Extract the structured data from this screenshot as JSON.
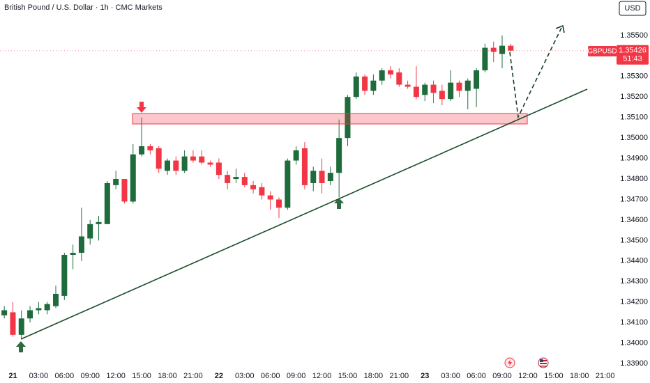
{
  "chart_data": {
    "type": "candlestick",
    "title": "British Pound / U.S. Dollar · 1h · CMC Markets",
    "currency": "USD",
    "symbol": "GBPUSD",
    "last_price": 1.35426,
    "countdown": "51:43",
    "up_color": "#1e6b3c",
    "down_color": "#f23645",
    "xlim": [
      -1.5,
      70
    ],
    "ylim": [
      1.33873,
      1.35673
    ],
    "xticks": [
      {
        "value": 0,
        "label": "21"
      },
      {
        "value": 3,
        "label": "03:00"
      },
      {
        "value": 6,
        "label": "06:00"
      },
      {
        "value": 9,
        "label": "09:00"
      },
      {
        "value": 12,
        "label": "12:00"
      },
      {
        "value": 15,
        "label": "15:00"
      },
      {
        "value": 18,
        "label": "18:00"
      },
      {
        "value": 21,
        "label": "21:00"
      },
      {
        "value": 24,
        "label": "22"
      },
      {
        "value": 27,
        "label": "03:00"
      },
      {
        "value": 30,
        "label": "06:00"
      },
      {
        "value": 33,
        "label": "09:00"
      },
      {
        "value": 36,
        "label": "12:00"
      },
      {
        "value": 39,
        "label": "15:00"
      },
      {
        "value": 42,
        "label": "18:00"
      },
      {
        "value": 45,
        "label": "21:00"
      },
      {
        "value": 48,
        "label": "23"
      },
      {
        "value": 51,
        "label": "03:00"
      },
      {
        "value": 54,
        "label": "06:00"
      },
      {
        "value": 57,
        "label": "09:00"
      },
      {
        "value": 60,
        "label": "12:00"
      },
      {
        "value": 63,
        "label": "15:00"
      },
      {
        "value": 66,
        "label": "18:00"
      },
      {
        "value": 69,
        "label": "21:00"
      }
    ],
    "yticks": [
      {
        "value": 1.339,
        "label": "1.33900"
      },
      {
        "value": 1.34,
        "label": "1.34000"
      },
      {
        "value": 1.341,
        "label": "1.34100"
      },
      {
        "value": 1.342,
        "label": "1.34200"
      },
      {
        "value": 1.343,
        "label": "1.34300"
      },
      {
        "value": 1.344,
        "label": "1.34400"
      },
      {
        "value": 1.345,
        "label": "1.34500"
      },
      {
        "value": 1.346,
        "label": "1.34600"
      },
      {
        "value": 1.347,
        "label": "1.34700"
      },
      {
        "value": 1.348,
        "label": "1.34800"
      },
      {
        "value": 1.349,
        "label": "1.34900"
      },
      {
        "value": 1.35,
        "label": "1.35000"
      },
      {
        "value": 1.351,
        "label": "1.35100"
      },
      {
        "value": 1.352,
        "label": "1.35200"
      },
      {
        "value": 1.353,
        "label": "1.35300"
      },
      {
        "value": 1.355,
        "label": "1.35500"
      }
    ],
    "x": [
      -1,
      0,
      1,
      2,
      3,
      4,
      5,
      6,
      7,
      8,
      9,
      10,
      11,
      12,
      13,
      14,
      15,
      16,
      17,
      18,
      19,
      20,
      21,
      22,
      23,
      24,
      25,
      26,
      27,
      28,
      29,
      30,
      31,
      32,
      33,
      34,
      35,
      36,
      37,
      38,
      39,
      40,
      41,
      42,
      43,
      44,
      45,
      46,
      47,
      48,
      49,
      50,
      51,
      52,
      53,
      54,
      55,
      56,
      57,
      58
    ],
    "open": [
      1.34135,
      1.3415,
      1.3404,
      1.3412,
      1.3416,
      1.3416,
      1.3418,
      1.3423,
      1.3443,
      1.3444,
      1.3451,
      1.3458,
      1.3458,
      1.3477,
      1.348,
      1.3469,
      1.3492,
      1.3496,
      1.3495,
      1.3484,
      1.3489,
      1.3484,
      1.3491,
      1.3491,
      1.3488,
      1.3488,
      1.3482,
      1.348,
      1.3481,
      1.3477,
      1.3476,
      1.3472,
      1.347,
      1.3466,
      1.3489,
      1.3495,
      1.3478,
      1.3484,
      1.3479,
      1.3483,
      1.35,
      1.352,
      1.353,
      1.3523,
      1.3528,
      1.3533,
      1.3532,
      1.3526,
      1.3525,
      1.3521,
      1.3526,
      1.3523,
      1.3519,
      1.3527,
      1.3523,
      1.3524,
      1.3533,
      1.3544,
      1.3541,
      1.3545
    ],
    "high": [
      1.3418,
      1.342,
      1.3416,
      1.3418,
      1.342,
      1.342,
      1.3428,
      1.3444,
      1.3448,
      1.3466,
      1.346,
      1.3462,
      1.3479,
      1.3484,
      1.348,
      1.3497,
      1.351,
      1.3497,
      1.3496,
      1.349,
      1.3491,
      1.3494,
      1.3494,
      1.3494,
      1.3489,
      1.349,
      1.3484,
      1.3485,
      1.3483,
      1.3479,
      1.3478,
      1.3474,
      1.3471,
      1.349,
      1.3496,
      1.3498,
      1.3486,
      1.349,
      1.3486,
      1.3509,
      1.3521,
      1.3532,
      1.3531,
      1.3531,
      1.3534,
      1.3535,
      1.3534,
      1.3528,
      1.3535,
      1.3527,
      1.3528,
      1.3526,
      1.3533,
      1.3528,
      1.3529,
      1.3534,
      1.3546,
      1.3547,
      1.355,
      1.3546
    ],
    "low": [
      1.3412,
      1.3403,
      1.3402,
      1.341,
      1.3414,
      1.3414,
      1.3417,
      1.3421,
      1.3436,
      1.344,
      1.3448,
      1.345,
      1.3458,
      1.3475,
      1.3468,
      1.3468,
      1.3491,
      1.3492,
      1.3483,
      1.3482,
      1.3482,
      1.3483,
      1.3488,
      1.3487,
      1.3486,
      1.348,
      1.3475,
      1.3478,
      1.3476,
      1.3473,
      1.347,
      1.3465,
      1.3461,
      1.3465,
      1.3487,
      1.3475,
      1.3474,
      1.3473,
      1.3477,
      1.3471,
      1.3496,
      1.3519,
      1.3521,
      1.3521,
      1.3526,
      1.3529,
      1.3525,
      1.3524,
      1.3519,
      1.3518,
      1.3517,
      1.3516,
      1.3518,
      1.352,
      1.3514,
      1.3515,
      1.3532,
      1.3537,
      1.3534,
      1.3542
    ],
    "close": [
      1.3416,
      1.3404,
      1.3412,
      1.3416,
      1.3417,
      1.3419,
      1.3424,
      1.3443,
      1.3444,
      1.3452,
      1.3458,
      1.3459,
      1.3478,
      1.348,
      1.3469,
      1.3492,
      1.3496,
      1.3494,
      1.3485,
      1.3489,
      1.3484,
      1.3491,
      1.3489,
      1.3488,
      1.3487,
      1.3482,
      1.3478,
      1.3481,
      1.3477,
      1.3475,
      1.3472,
      1.347,
      1.3466,
      1.3489,
      1.3494,
      1.3477,
      1.3484,
      1.3478,
      1.3483,
      1.35,
      1.352,
      1.353,
      1.3523,
      1.3528,
      1.3533,
      1.3531,
      1.3526,
      1.3525,
      1.352,
      1.3526,
      1.3522,
      1.3519,
      1.3527,
      1.3523,
      1.3528,
      1.3533,
      1.3544,
      1.3542,
      1.3545,
      1.35426
    ]
  }
}
